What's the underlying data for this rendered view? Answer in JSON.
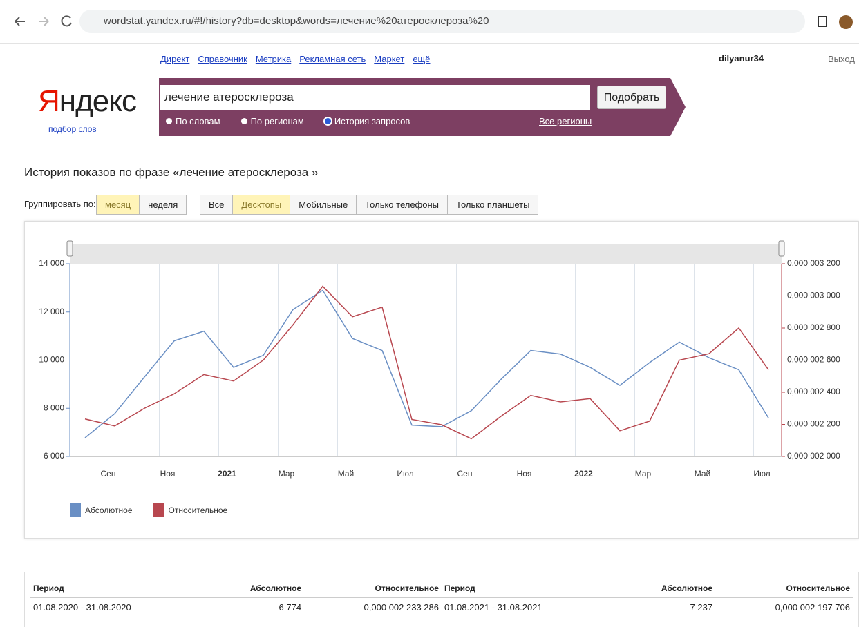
{
  "browser": {
    "url": "wordstat.yandex.ru/#!/history?db=desktop&words=лечение%20атеросклероза%20"
  },
  "header": {
    "links": [
      "Директ",
      "Справочник",
      "Метрика",
      "Рекламная сеть",
      "Маркет",
      "ещё"
    ],
    "user": "dilyanur34",
    "logout": "Выход",
    "logo": "Яндекс",
    "logo_sub": "подбор слов"
  },
  "search": {
    "query": "лечение атеросклероза",
    "button": "Подобрать",
    "modes": [
      "По словам",
      "По регионам",
      "История запросов"
    ],
    "regions": "Все регионы"
  },
  "page": {
    "heading": "История показов по фразе «лечение атеросклероза »",
    "group_label": "Группировать по:",
    "group_options": [
      "месяц",
      "неделя"
    ],
    "device_options": [
      "Все",
      "Десктопы",
      "Мобильные",
      "Только телефоны",
      "Только планшеты"
    ]
  },
  "chart_data": {
    "type": "line",
    "categories": [
      null,
      "Сен",
      null,
      "Ноя",
      null,
      "2021",
      null,
      "Мар",
      null,
      "Май",
      null,
      "Июл",
      null,
      "Сен",
      null,
      "Ноя",
      null,
      "2022",
      null,
      "Мар",
      null,
      "Май",
      null,
      "Июл"
    ],
    "series": [
      {
        "name": "Абсолютное",
        "color": "#6a8fc4",
        "values": [
          6774,
          7780,
          9300,
          10800,
          11200,
          9700,
          10200,
          12100,
          12900,
          10900,
          10400,
          7300,
          7237,
          7900,
          9200,
          10400,
          10250,
          9700,
          8950,
          9900,
          10750,
          10100,
          9600,
          7600
        ]
      },
      {
        "name": "Относительное",
        "color": "#b8474f",
        "axis": "y2",
        "values": [
          2.233286e-06,
          2.19e-06,
          2.3e-06,
          2.39e-06,
          2.51e-06,
          2.47e-06,
          2.6e-06,
          2.82e-06,
          3.06e-06,
          2.87e-06,
          2.93e-06,
          2.23e-06,
          2.197706e-06,
          2.11e-06,
          2.25e-06,
          2.38e-06,
          2.34e-06,
          2.36e-06,
          2.16e-06,
          2.22e-06,
          2.6e-06,
          2.64e-06,
          2.8e-06,
          2.54e-06
        ]
      }
    ],
    "ylim": [
      6000,
      14000
    ],
    "yticks": [
      {
        "value": 6000,
        "label": "6 000"
      },
      {
        "value": 8000,
        "label": "8 000"
      },
      {
        "value": 10000,
        "label": "10 000"
      },
      {
        "value": 12000,
        "label": "12 000"
      },
      {
        "value": 14000,
        "label": "14 000"
      }
    ],
    "y2lim": [
      2e-06,
      3.2e-06
    ],
    "y2ticks": [
      {
        "value": 2e-06,
        "label": "0,000 002 000"
      },
      {
        "value": 2.2e-06,
        "label": "0,000 002 200"
      },
      {
        "value": 2.4e-06,
        "label": "0,000 002 400"
      },
      {
        "value": 2.6e-06,
        "label": "0,000 002 600"
      },
      {
        "value": 2.8e-06,
        "label": "0,000 002 800"
      },
      {
        "value": 3e-06,
        "label": "0,000 003 000"
      },
      {
        "value": 3.2e-06,
        "label": "0,000 003 200"
      }
    ]
  },
  "table": {
    "headers": [
      "Период",
      "Абсолютное",
      "Относительное",
      "Период",
      "Абсолютное",
      "Относительное"
    ],
    "rows": [
      [
        "01.08.2020 - 31.08.2020",
        "6 774",
        "0,000 002 233 286",
        "01.08.2021 - 31.08.2021",
        "7 237",
        "0,000 002 197 706"
      ]
    ]
  }
}
